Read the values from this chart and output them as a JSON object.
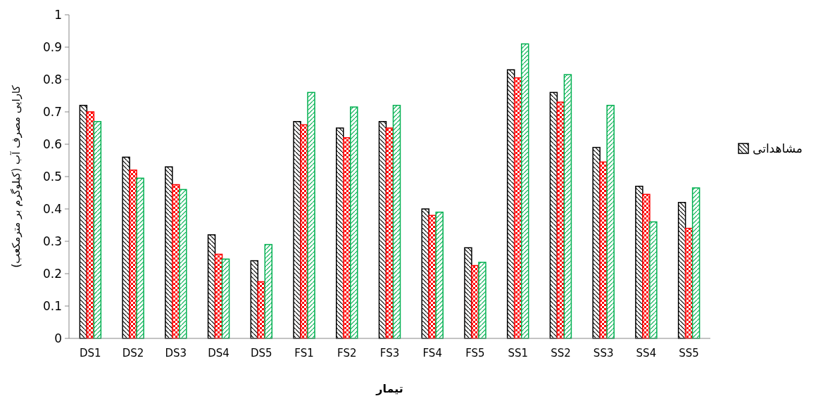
{
  "chart_data": {
    "type": "bar",
    "xlabel": "تیمار",
    "ylabel": "کارایی مصرف آب (کیلوگرم بر مترمکعب)",
    "categories": [
      "DS1",
      "DS2",
      "DS3",
      "DS4",
      "DS5",
      "FS1",
      "FS2",
      "FS3",
      "FS4",
      "FS5",
      "SS1",
      "SS2",
      "SS3",
      "SS4",
      "SS5"
    ],
    "series": [
      {
        "name": "مشاهداتی",
        "color": "#000000",
        "values": [
          0.72,
          0.56,
          0.53,
          0.32,
          0.24,
          0.67,
          0.65,
          0.67,
          0.4,
          0.28,
          0.83,
          0.76,
          0.59,
          0.47,
          0.42
        ]
      },
      {
        "color": "#ff0000",
        "values": [
          0.7,
          0.52,
          0.475,
          0.26,
          0.175,
          0.66,
          0.62,
          0.65,
          0.38,
          0.225,
          0.805,
          0.73,
          0.545,
          0.445,
          0.34
        ]
      },
      {
        "color": "#00b050",
        "values": [
          0.67,
          0.495,
          0.46,
          0.245,
          0.29,
          0.76,
          0.715,
          0.72,
          0.39,
          0.235,
          0.91,
          0.815,
          0.72,
          0.36,
          0.465
        ]
      }
    ],
    "ylim": [
      0,
      1
    ],
    "yticks": [
      0,
      0.1,
      0.2,
      0.3,
      0.4,
      0.5,
      0.6,
      0.7,
      0.8,
      0.9,
      1
    ],
    "grid": false,
    "legend": "right"
  }
}
